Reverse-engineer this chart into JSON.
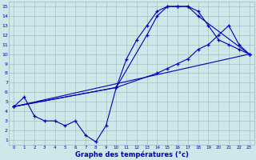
{
  "xlabel": "Graphe des températures (°c)",
  "bg_color": "#cce8e8",
  "grid_color": "#99bbbb",
  "line_color": "#0000bb",
  "xlim_min": -0.5,
  "xlim_max": 23.5,
  "ylim_min": 0.5,
  "ylim_max": 15.5,
  "xticks": [
    0,
    1,
    2,
    3,
    4,
    5,
    6,
    7,
    8,
    9,
    10,
    11,
    12,
    13,
    14,
    15,
    16,
    17,
    18,
    19,
    20,
    21,
    22,
    23
  ],
  "yticks": [
    1,
    2,
    3,
    4,
    5,
    6,
    7,
    8,
    9,
    10,
    11,
    12,
    13,
    14,
    15
  ],
  "series": [
    {
      "x": [
        0,
        1,
        2,
        3,
        4,
        5,
        6,
        7,
        8,
        9,
        10,
        11,
        12,
        13,
        14,
        15,
        16,
        17,
        18,
        23
      ],
      "y": [
        4.5,
        5.5,
        3.5,
        3.0,
        3.0,
        2.5,
        3.0,
        1.5,
        0.8,
        2.5,
        6.5,
        9.5,
        11.5,
        13.0,
        14.5,
        15.0,
        15.0,
        15.0,
        14.0,
        10.0
      ]
    },
    {
      "x": [
        0,
        10,
        13,
        14,
        15,
        16,
        17,
        18,
        19,
        20,
        21,
        22,
        23
      ],
      "y": [
        4.5,
        6.5,
        12.0,
        14.0,
        15.0,
        15.0,
        15.0,
        14.5,
        13.0,
        11.5,
        11.0,
        10.5,
        10.0
      ]
    },
    {
      "x": [
        0,
        10,
        14,
        15,
        16,
        17,
        18,
        19,
        20,
        21,
        22,
        23
      ],
      "y": [
        4.5,
        6.5,
        8.0,
        8.5,
        9.0,
        9.5,
        10.5,
        11.0,
        12.0,
        13.0,
        11.0,
        10.0
      ]
    },
    {
      "x": [
        0,
        23
      ],
      "y": [
        4.5,
        10.0
      ]
    }
  ]
}
